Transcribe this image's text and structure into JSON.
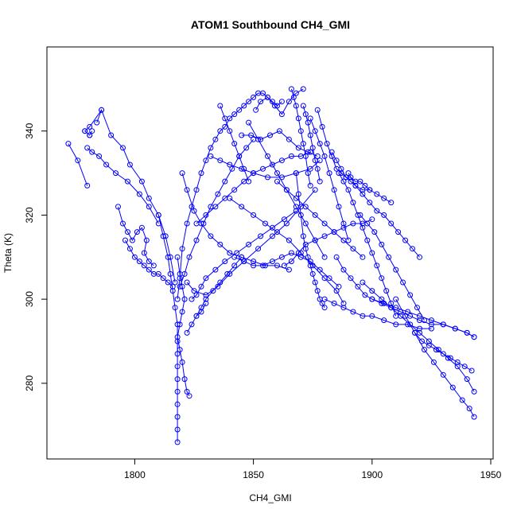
{
  "chart_data": {
    "type": "scatter",
    "title": "ATOM1 Southbound CH4_GMI",
    "xlabel": "CH4_GMI",
    "ylabel": "Theta (K)",
    "xlim": [
      1763,
      1951
    ],
    "ylim": [
      262,
      360
    ],
    "xticks": [
      1800,
      1850,
      1900,
      1950
    ],
    "yticks": [
      280,
      300,
      320,
      340
    ],
    "grid": false,
    "legend": "none",
    "series_color": "#0000ff",
    "series": [
      {
        "x": [
          1772,
          1776,
          1780
        ],
        "y": [
          337,
          333,
          327
        ]
      },
      {
        "x": [
          1779,
          1781,
          1782,
          1781,
          1779,
          1781,
          1786
        ],
        "y": [
          340,
          339,
          340,
          339,
          340,
          341,
          345
        ]
      },
      {
        "x": [
          1784,
          1786,
          1790,
          1795,
          1798,
          1803,
          1806,
          1810,
          1813,
          1815,
          1817
        ],
        "y": [
          342,
          345,
          339,
          336,
          332,
          328,
          324,
          320,
          315,
          310,
          304
        ]
      },
      {
        "x": [
          1780,
          1782,
          1785,
          1788,
          1792,
          1797,
          1802,
          1806,
          1810
        ],
        "y": [
          336,
          335,
          334,
          332,
          330,
          328,
          325,
          322,
          318
        ]
      },
      {
        "x": [
          1793,
          1795,
          1797,
          1799,
          1801,
          1803,
          1805,
          1804,
          1806,
          1808
        ],
        "y": [
          322,
          318,
          316,
          314,
          316,
          317,
          314,
          311,
          309,
          308
        ]
      },
      {
        "x": [
          1796,
          1798,
          1800,
          1802,
          1804,
          1806,
          1808,
          1810,
          1812,
          1814,
          1816
        ],
        "y": [
          314,
          312,
          310,
          309,
          308,
          307,
          306,
          306,
          305,
          304,
          303
        ]
      },
      {
        "x": [
          1810,
          1812,
          1814,
          1815,
          1816,
          1817,
          1818,
          1818,
          1818,
          1818,
          1818,
          1818,
          1818,
          1818,
          1818,
          1818
        ],
        "y": [
          320,
          315,
          310,
          306,
          302,
          298,
          294,
          290,
          287,
          284,
          281,
          278,
          275,
          272,
          269,
          266
        ]
      },
      {
        "x": [
          1818,
          1819,
          1820,
          1821,
          1820,
          1819,
          1818,
          1819,
          1820,
          1821,
          1822,
          1823
        ],
        "y": [
          310,
          306,
          303,
          300,
          297,
          294,
          291,
          288,
          285,
          281,
          278,
          277
        ]
      },
      {
        "x": [
          1818,
          1819,
          1820,
          1822,
          1824,
          1826,
          1828,
          1830,
          1832,
          1834,
          1836,
          1838,
          1840,
          1842,
          1844,
          1846,
          1848,
          1850,
          1852,
          1854,
          1856,
          1858,
          1860,
          1862
        ],
        "y": [
          300,
          305,
          312,
          318,
          322,
          326,
          330,
          333,
          336,
          338,
          340,
          341,
          343,
          344,
          345,
          346,
          347,
          348,
          349,
          349,
          348,
          347,
          346,
          347
        ]
      },
      {
        "x": [
          1819,
          1821,
          1823,
          1826,
          1829,
          1832,
          1835,
          1838,
          1841,
          1844,
          1847,
          1850
        ],
        "y": [
          303,
          306,
          310,
          314,
          318,
          322,
          325,
          328,
          331,
          334,
          336,
          338
        ]
      },
      {
        "x": [
          1820,
          1822,
          1825,
          1828,
          1832,
          1836,
          1840,
          1845,
          1850,
          1855,
          1860,
          1865
        ],
        "y": [
          330,
          326,
          321,
          318,
          315,
          313,
          311,
          310,
          309,
          308,
          308,
          307
        ]
      },
      {
        "x": [
          1824,
          1826,
          1828,
          1830,
          1834,
          1838,
          1843,
          1848,
          1853,
          1858,
          1863,
          1868
        ],
        "y": [
          300,
          301,
          303,
          305,
          307,
          309,
          311,
          313,
          315,
          317,
          319,
          321
        ]
      },
      {
        "x": [
          1822,
          1825,
          1830,
          1835,
          1840,
          1846,
          1852,
          1858,
          1864,
          1870,
          1876
        ],
        "y": [
          304,
          302,
          301,
          303,
          306,
          309,
          312,
          315,
          318,
          322,
          326
        ]
      },
      {
        "x": [
          1826,
          1830,
          1834,
          1838,
          1842,
          1846,
          1850,
          1854,
          1858,
          1862,
          1866,
          1870,
          1874
        ],
        "y": [
          318,
          320,
          322,
          324,
          326,
          328,
          330,
          331,
          332,
          333,
          334,
          334,
          335
        ]
      },
      {
        "x": [
          1832,
          1836,
          1840,
          1845,
          1850,
          1856,
          1862,
          1868,
          1874,
          1878
        ],
        "y": [
          334,
          333,
          332,
          331,
          330,
          329,
          329,
          330,
          331,
          333
        ]
      },
      {
        "x": [
          1845,
          1849,
          1853,
          1857,
          1861,
          1865,
          1869,
          1873,
          1877
        ],
        "y": [
          339,
          339,
          338,
          339,
          340,
          338,
          336,
          335,
          334
        ]
      },
      {
        "x": [
          1851,
          1853,
          1856,
          1859,
          1862,
          1865,
          1868,
          1871
        ],
        "y": [
          345,
          347,
          348,
          346,
          344,
          347,
          349,
          350
        ]
      },
      {
        "x": [
          1866,
          1867,
          1868,
          1869,
          1870,
          1871,
          1872,
          1873,
          1874
        ],
        "y": [
          350,
          348,
          346,
          343,
          340,
          337,
          334,
          330,
          327
        ]
      },
      {
        "x": [
          1871,
          1872,
          1873,
          1874,
          1875,
          1876,
          1877,
          1878
        ],
        "y": [
          346,
          344,
          342,
          339,
          336,
          333,
          331,
          328
        ]
      },
      {
        "x": [
          1868,
          1869,
          1870,
          1871,
          1872,
          1873,
          1874,
          1875,
          1876,
          1877,
          1878,
          1879,
          1880
        ],
        "y": [
          330,
          325,
          320,
          315,
          312,
          310,
          308,
          306,
          304,
          302,
          300,
          299,
          298
        ]
      },
      {
        "x": [
          1874,
          1876,
          1878,
          1880,
          1882,
          1884,
          1886,
          1888,
          1890
        ],
        "y": [
          343,
          340,
          337,
          334,
          330,
          326,
          322,
          318,
          314
        ]
      },
      {
        "x": [
          1877,
          1879,
          1881,
          1883,
          1885,
          1887,
          1889,
          1891,
          1893,
          1895,
          1897,
          1899
        ],
        "y": [
          345,
          341,
          337,
          334,
          331,
          330,
          329,
          329,
          328,
          328,
          327,
          326
        ]
      },
      {
        "x": [
          1863,
          1866,
          1869,
          1872,
          1876,
          1880,
          1884,
          1888,
          1892,
          1896,
          1900
        ],
        "y": [
          308,
          309,
          311,
          313,
          314,
          315,
          316,
          317,
          318,
          318,
          319
        ]
      },
      {
        "x": [
          1840,
          1845,
          1850,
          1855,
          1860,
          1865,
          1870,
          1875,
          1880,
          1885,
          1888
        ],
        "y": [
          324,
          322,
          320,
          318,
          316,
          314,
          311,
          308,
          305,
          302,
          299
        ]
      },
      {
        "x": [
          1842,
          1846,
          1850,
          1854,
          1858,
          1862,
          1866,
          1870,
          1874,
          1878,
          1882,
          1886
        ],
        "y": [
          310,
          309,
          308,
          308,
          309,
          310,
          311,
          310,
          309,
          307,
          305,
          303
        ]
      },
      {
        "x": [
          1883,
          1885,
          1887,
          1889,
          1891,
          1893,
          1896,
          1899,
          1902,
          1905,
          1908
        ],
        "y": [
          335,
          333,
          331,
          329,
          328,
          327,
          326,
          326,
          325,
          324,
          323
        ]
      },
      {
        "x": [
          1886,
          1888,
          1890,
          1892,
          1894,
          1896,
          1898,
          1900,
          1902,
          1904,
          1906,
          1908,
          1910
        ],
        "y": [
          330,
          328,
          326,
          323,
          320,
          317,
          314,
          311,
          308,
          305,
          302,
          299,
          296
        ]
      },
      {
        "x": [
          1890,
          1893,
          1896,
          1899,
          1902,
          1905,
          1908,
          1911,
          1914,
          1917,
          1920
        ],
        "y": [
          330,
          327,
          325,
          323,
          321,
          320,
          318,
          316,
          314,
          312,
          310
        ]
      },
      {
        "x": [
          1895,
          1898,
          1901,
          1904,
          1907,
          1910,
          1913,
          1916,
          1919,
          1922
        ],
        "y": [
          320,
          318,
          316,
          313,
          310,
          307,
          304,
          301,
          298,
          295
        ]
      },
      {
        "x": [
          1885,
          1888,
          1891,
          1894,
          1897,
          1900,
          1904,
          1908,
          1912,
          1916,
          1920,
          1925,
          1930,
          1935,
          1940,
          1943
        ],
        "y": [
          310,
          307,
          305,
          303,
          301,
          300,
          299,
          298,
          297,
          296,
          295,
          294,
          294,
          293,
          292,
          291
        ]
      },
      {
        "x": [
          1880,
          1884,
          1888,
          1892,
          1896,
          1900,
          1905,
          1910,
          1915,
          1920,
          1925
        ],
        "y": [
          300,
          299,
          298,
          297,
          296,
          296,
          295,
          294,
          294,
          293,
          293
        ]
      },
      {
        "x": [
          1900,
          1905,
          1910,
          1915,
          1920,
          1925,
          1930,
          1935,
          1940,
          1943
        ],
        "y": [
          300,
          299,
          298,
          297,
          296,
          295,
          294,
          293,
          292,
          291
        ]
      },
      {
        "x": [
          1910,
          1914,
          1918,
          1922,
          1926,
          1930,
          1934,
          1938,
          1941,
          1943
        ],
        "y": [
          300,
          296,
          292,
          288,
          285,
          282,
          279,
          276,
          274,
          272
        ]
      },
      {
        "x": [
          1896,
          1900,
          1904,
          1908,
          1912,
          1916,
          1920,
          1924,
          1928,
          1932,
          1936,
          1940,
          1943
        ],
        "y": [
          304,
          302,
          300,
          298,
          296,
          294,
          292,
          290,
          288,
          286,
          284,
          281,
          278
        ]
      },
      {
        "x": [
          1918,
          1921,
          1924,
          1927,
          1930,
          1933,
          1936,
          1939,
          1942
        ],
        "y": [
          292,
          290,
          289,
          288,
          287,
          286,
          285,
          284,
          283
        ]
      },
      {
        "x": [
          1860,
          1864,
          1868,
          1872,
          1876,
          1880,
          1884,
          1888,
          1892,
          1896
        ],
        "y": [
          328,
          326,
          324,
          322,
          320,
          318,
          316,
          314,
          312,
          310
        ]
      },
      {
        "x": [
          1848,
          1852,
          1856,
          1860,
          1864,
          1868,
          1872,
          1876,
          1880
        ],
        "y": [
          342,
          338,
          334,
          330,
          326,
          322,
          318,
          314,
          310
        ]
      },
      {
        "x": [
          1836,
          1838,
          1840,
          1842,
          1844,
          1846,
          1848
        ],
        "y": [
          346,
          343,
          340,
          337,
          334,
          331,
          328
        ]
      },
      {
        "x": [
          1826,
          1828,
          1830,
          1833,
          1836,
          1839,
          1842,
          1845
        ],
        "y": [
          296,
          298,
          300,
          302,
          304,
          306,
          308,
          310
        ]
      },
      {
        "x": [
          1822,
          1824,
          1826,
          1828,
          1830
        ],
        "y": [
          292,
          294,
          296,
          297,
          299
        ]
      }
    ]
  }
}
